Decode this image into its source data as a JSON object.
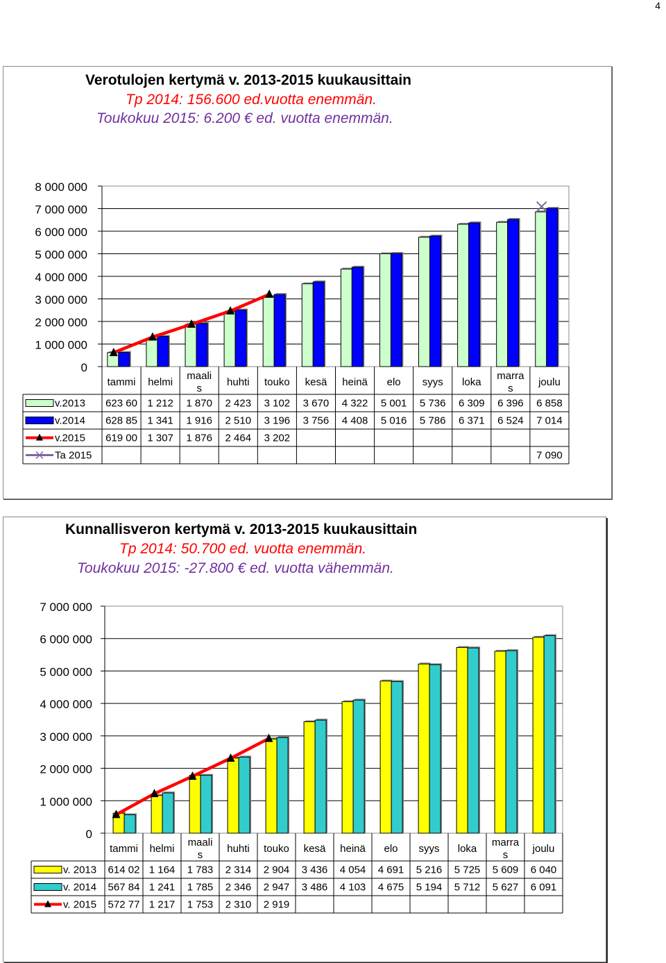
{
  "page": {
    "number": "4"
  },
  "chart_data": [
    {
      "type": "bar",
      "title": "Verotulojen kertymä v. 2013-2015  kuukausittain",
      "subtitles": [
        "Tp 2014: 156.600 ed.vuotta enemmän.",
        "Toukokuu 2015: 6.200 € ed. vuotta enemmän."
      ],
      "categories": [
        "tammi",
        "helmi",
        "maali s",
        "huhti",
        "touko",
        "kesä",
        "heinä",
        "elo",
        "syys",
        "loka",
        "marra s",
        "joulu"
      ],
      "y_ticks": [
        "8 000 000",
        "7 000 000",
        "6 000 000",
        "5 000 000",
        "4 000 000",
        "3 000 000",
        "2 000 000",
        "1 000 000",
        "0"
      ],
      "ylim": [
        0,
        8000000
      ],
      "grid": true,
      "legend": "data-table",
      "series": [
        {
          "name": "v.2013",
          "kind": "bar",
          "color": "#ccffcc",
          "values": [
            623600,
            1212000,
            1870000,
            2423000,
            3102000,
            3670000,
            4322000,
            5001000,
            5736000,
            6309000,
            6396000,
            6858000
          ],
          "table": [
            "623 60",
            "1 212",
            "1 870",
            "2 423",
            "3 102",
            "3 670",
            "4 322",
            "5 001",
            "5 736",
            "6 309",
            "6 396",
            "6 858"
          ]
        },
        {
          "name": "v.2014",
          "kind": "bar",
          "color": "#0000ff",
          "values": [
            628850,
            1341000,
            1916000,
            2510000,
            3196000,
            3756000,
            4408000,
            5016000,
            5786000,
            6371000,
            6524000,
            7014000
          ],
          "table": [
            "628 85",
            "1 341",
            "1 916",
            "2 510",
            "3 196",
            "3 756",
            "4 408",
            "5 016",
            "5 786",
            "6 371",
            "6 524",
            "7 014"
          ]
        },
        {
          "name": "v.2015",
          "kind": "line",
          "color": "#ff0000",
          "values": [
            619000,
            1307000,
            1876000,
            2464000,
            3202000,
            null,
            null,
            null,
            null,
            null,
            null,
            null
          ],
          "table": [
            "619 00",
            "1 307",
            "1 876",
            "2 464",
            "3 202",
            "",
            "",
            "",
            "",
            "",
            "",
            ""
          ]
        },
        {
          "name": "Ta 2015",
          "kind": "x-marker",
          "color": "#8064a2",
          "values": [
            null,
            null,
            null,
            null,
            null,
            null,
            null,
            null,
            null,
            null,
            null,
            7090000
          ],
          "table": [
            "",
            "",
            "",
            "",
            "",
            "",
            "",
            "",
            "",
            "",
            "",
            "7 090"
          ]
        }
      ]
    },
    {
      "type": "bar",
      "title": "Kunnallisveron kertymä v. 2013-2015 kuukausittain",
      "subtitles": [
        "Tp 2014: 50.700 ed. vuotta enemmän.",
        "Toukokuu 2015: -27.800 € ed. vuotta vähemmän."
      ],
      "categories": [
        "tammi",
        "helmi",
        "maali s",
        "huhti",
        "touko",
        "kesä",
        "heinä",
        "elo",
        "syys",
        "loka",
        "marra s",
        "joulu"
      ],
      "y_ticks": [
        "7 000 000",
        "6 000 000",
        "5 000 000",
        "4 000 000",
        "3 000 000",
        "2 000 000",
        "1 000 000",
        "0"
      ],
      "ylim": [
        0,
        7000000
      ],
      "grid": true,
      "legend": "data-table",
      "series": [
        {
          "name": "v. 2013",
          "kind": "bar",
          "color": "#ffff00",
          "values": [
            614020,
            1164000,
            1783000,
            2314000,
            2904000,
            3436000,
            4054000,
            4691000,
            5216000,
            5725000,
            5609000,
            6040000
          ],
          "table": [
            "614 02",
            "1 164",
            "1 783",
            "2 314",
            "2 904",
            "3 436",
            "4 054",
            "4 691",
            "5 216",
            "5 725",
            "5 609",
            "6 040"
          ]
        },
        {
          "name": "v. 2014",
          "kind": "bar",
          "color": "#33cccc",
          "values": [
            567840,
            1241000,
            1785000,
            2346000,
            2947000,
            3486000,
            4103000,
            4675000,
            5194000,
            5712000,
            5627000,
            6091000
          ],
          "table": [
            "567 84",
            "1 241",
            "1 785",
            "2 346",
            "2 947",
            "3 486",
            "4 103",
            "4 675",
            "5 194",
            "5 712",
            "5 627",
            "6 091"
          ]
        },
        {
          "name": "v. 2015",
          "kind": "line",
          "color": "#ff0000",
          "values": [
            572770,
            1217000,
            1753000,
            2310000,
            2919000,
            null,
            null,
            null,
            null,
            null,
            null,
            null
          ],
          "table": [
            "572 77",
            "1 217",
            "1 753",
            "2 310",
            "2 919",
            "",
            "",
            "",
            "",
            "",
            "",
            ""
          ]
        }
      ]
    }
  ]
}
